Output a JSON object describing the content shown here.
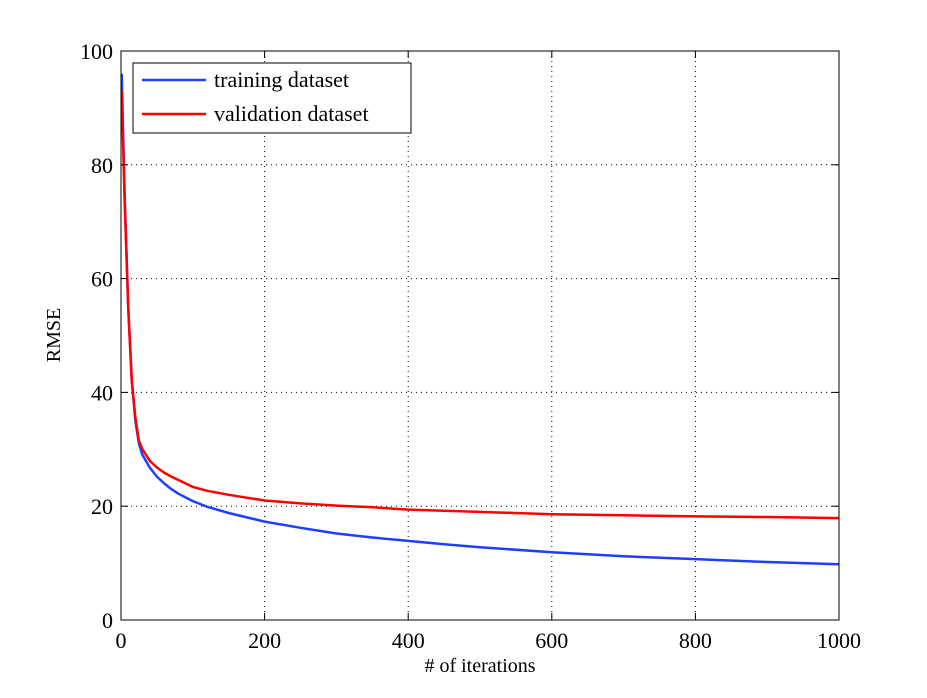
{
  "chart_data": {
    "type": "line",
    "title": "",
    "xlabel": "# of iterations",
    "ylabel": "RMSE",
    "xlim": [
      0,
      1000
    ],
    "ylim": [
      0,
      100
    ],
    "xticks": [
      0,
      200,
      400,
      600,
      800,
      1000
    ],
    "yticks": [
      0,
      20,
      40,
      60,
      80,
      100
    ],
    "xtick_labels": [
      "0",
      "200",
      "400",
      "600",
      "800",
      "1000"
    ],
    "ytick_labels": [
      "0",
      "20",
      "40",
      "60",
      "80",
      "100"
    ],
    "grid": true,
    "legend_position": "top-left",
    "series": [
      {
        "name": "training dataset",
        "color": "#1f3fff",
        "x": [
          1,
          5,
          10,
          15,
          20,
          25,
          30,
          40,
          50,
          60,
          70,
          80,
          100,
          120,
          150,
          200,
          250,
          300,
          350,
          400,
          450,
          500,
          600,
          700,
          800,
          900,
          1000
        ],
        "y": [
          96,
          75,
          55,
          42,
          35,
          31,
          29,
          26.8,
          25.2,
          24.0,
          23.0,
          22.2,
          20.9,
          19.9,
          18.8,
          17.3,
          16.2,
          15.2,
          14.5,
          13.9,
          13.3,
          12.8,
          11.9,
          11.2,
          10.7,
          10.2,
          9.8
        ]
      },
      {
        "name": "validation dataset",
        "color": "#ff0000",
        "x": [
          1,
          5,
          10,
          15,
          20,
          25,
          30,
          40,
          50,
          60,
          70,
          80,
          100,
          120,
          150,
          200,
          250,
          300,
          350,
          400,
          450,
          500,
          600,
          700,
          800,
          900,
          1000
        ],
        "y": [
          93,
          74,
          55,
          42,
          35.5,
          31.5,
          30,
          28,
          26.8,
          25.9,
          25.2,
          24.6,
          23.4,
          22.7,
          22.0,
          21.0,
          20.5,
          20.1,
          19.8,
          19.4,
          19.2,
          19.0,
          18.6,
          18.4,
          18.2,
          18.1,
          17.9
        ]
      }
    ]
  }
}
